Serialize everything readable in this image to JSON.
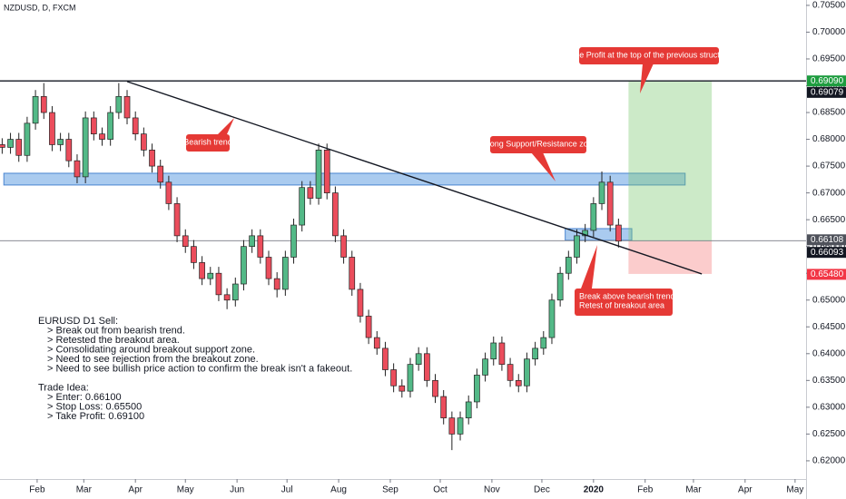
{
  "chart_data": {
    "type": "candlestick",
    "title": "NZDUSD, D, FXCM",
    "x": [
      10,
      15,
      20,
      25,
      30,
      35,
      40,
      45,
      50,
      55,
      60,
      65,
      70,
      75,
      80,
      85,
      90,
      95,
      100,
      105,
      110,
      115,
      120,
      125,
      130,
      135,
      140,
      145,
      150,
      155,
      160,
      165,
      170,
      175,
      180,
      185,
      190,
      195,
      200,
      205,
      210,
      215,
      220,
      225,
      230,
      235,
      240,
      245,
      250,
      255,
      260,
      265,
      270,
      275,
      280,
      285,
      290,
      295,
      300,
      305,
      310,
      315,
      320,
      325,
      330,
      335,
      340,
      345,
      350,
      355,
      360,
      365,
      370,
      375,
      380
    ],
    "open": [
      0.679,
      0.6785,
      0.68,
      0.677,
      0.683,
      0.688,
      0.685,
      0.679,
      0.68,
      0.676,
      0.673,
      0.684,
      0.681,
      0.68,
      0.685,
      0.688,
      0.684,
      0.681,
      0.678,
      0.675,
      0.672,
      0.668,
      0.662,
      0.66,
      0.657,
      0.654,
      0.655,
      0.651,
      0.65,
      0.653,
      0.66,
      0.662,
      0.658,
      0.654,
      0.652,
      0.658,
      0.664,
      0.671,
      0.669,
      0.678,
      0.67,
      0.662,
      0.658,
      0.652,
      0.647,
      0.643,
      0.641,
      0.637,
      0.634,
      0.633,
      0.638,
      0.64,
      0.635,
      0.632,
      0.628,
      0.625,
      0.628,
      0.631,
      0.636,
      0.639,
      0.642,
      0.638,
      0.635,
      0.634,
      0.639,
      0.641,
      0.643,
      0.65,
      0.655,
      0.658,
      0.662,
      0.663,
      0.668,
      0.672,
      0.664
    ],
    "high": [
      0.6802,
      0.6812,
      0.6812,
      0.6842,
      0.6892,
      0.6905,
      0.6862,
      0.6812,
      0.6812,
      0.6772,
      0.6852,
      0.6852,
      0.6822,
      0.6862,
      0.6905,
      0.6892,
      0.6852,
      0.6822,
      0.6792,
      0.6762,
      0.6732,
      0.6692,
      0.6632,
      0.6612,
      0.6582,
      0.6562,
      0.6562,
      0.6522,
      0.6542,
      0.6612,
      0.6632,
      0.6632,
      0.6592,
      0.6552,
      0.6592,
      0.6652,
      0.6722,
      0.6722,
      0.6792,
      0.6792,
      0.6712,
      0.6632,
      0.6592,
      0.6532,
      0.6482,
      0.6442,
      0.6422,
      0.6382,
      0.6352,
      0.6392,
      0.6412,
      0.6412,
      0.6362,
      0.6332,
      0.6292,
      0.6292,
      0.6322,
      0.6372,
      0.6402,
      0.6432,
      0.6432,
      0.6392,
      0.6362,
      0.6402,
      0.6422,
      0.6442,
      0.6512,
      0.6562,
      0.6592,
      0.6632,
      0.6642,
      0.6692,
      0.674,
      0.6732,
      0.6652
    ],
    "low": [
      0.6773,
      0.6773,
      0.6758,
      0.6758,
      0.6818,
      0.6838,
      0.6778,
      0.6778,
      0.6748,
      0.6718,
      0.6718,
      0.6798,
      0.6788,
      0.6788,
      0.6838,
      0.6828,
      0.6798,
      0.6768,
      0.6738,
      0.6708,
      0.6668,
      0.6608,
      0.6588,
      0.6558,
      0.6528,
      0.6528,
      0.6498,
      0.6483,
      0.6488,
      0.6518,
      0.6588,
      0.6568,
      0.6528,
      0.6505,
      0.6508,
      0.6568,
      0.6628,
      0.6678,
      0.6678,
      0.6688,
      0.6608,
      0.6568,
      0.6508,
      0.6458,
      0.6418,
      0.6398,
      0.6358,
      0.6328,
      0.6318,
      0.6318,
      0.6368,
      0.6338,
      0.6308,
      0.6268,
      0.622,
      0.6238,
      0.6268,
      0.6298,
      0.6348,
      0.6378,
      0.6368,
      0.6338,
      0.6328,
      0.6328,
      0.6378,
      0.6398,
      0.6418,
      0.6488,
      0.6538,
      0.6568,
      0.6608,
      0.6618,
      0.6668,
      0.6628,
      0.6598
    ],
    "close": [
      0.6785,
      0.68,
      0.677,
      0.683,
      0.688,
      0.685,
      0.679,
      0.68,
      0.676,
      0.673,
      0.684,
      0.681,
      0.68,
      0.685,
      0.688,
      0.684,
      0.681,
      0.678,
      0.675,
      0.672,
      0.668,
      0.662,
      0.66,
      0.657,
      0.654,
      0.655,
      0.651,
      0.65,
      0.653,
      0.66,
      0.662,
      0.658,
      0.654,
      0.652,
      0.658,
      0.664,
      0.671,
      0.669,
      0.678,
      0.67,
      0.662,
      0.658,
      0.652,
      0.647,
      0.643,
      0.641,
      0.637,
      0.634,
      0.633,
      0.638,
      0.64,
      0.635,
      0.632,
      0.628,
      0.625,
      0.628,
      0.631,
      0.636,
      0.639,
      0.642,
      0.638,
      0.635,
      0.634,
      0.639,
      0.641,
      0.643,
      0.65,
      0.655,
      0.658,
      0.662,
      0.663,
      0.668,
      0.672,
      0.664,
      0.661
    ],
    "up_color": "#53b987",
    "down_color": "#eb4d5c",
    "xlim": [
      8.7,
      492.6
    ],
    "xticks": [
      {
        "value": 31,
        "label": "Feb"
      },
      {
        "value": 59,
        "label": "Mar"
      },
      {
        "value": 90,
        "label": "Apr"
      },
      {
        "value": 120,
        "label": "May"
      },
      {
        "value": 151,
        "label": "Jun"
      },
      {
        "value": 181,
        "label": "Jul"
      },
      {
        "value": 212,
        "label": "Aug"
      },
      {
        "value": 243,
        "label": "Sep"
      },
      {
        "value": 273,
        "label": "Oct"
      },
      {
        "value": 304,
        "label": "Nov"
      },
      {
        "value": 334,
        "label": "Dec"
      },
      {
        "value": 365,
        "label": "2020"
      },
      {
        "value": 396,
        "label": "Feb"
      },
      {
        "value": 425,
        "label": "Mar"
      },
      {
        "value": 456,
        "label": "Apr"
      },
      {
        "value": 486,
        "label": "May"
      }
    ],
    "ylim": [
      0.6166,
      0.706
    ],
    "yticks": [
      {
        "value": 0.62,
        "label": "0.62000"
      },
      {
        "value": 0.625,
        "label": "0.62500"
      },
      {
        "value": 0.63,
        "label": "0.63000"
      },
      {
        "value": 0.635,
        "label": "0.63500"
      },
      {
        "value": 0.64,
        "label": "0.64000"
      },
      {
        "value": 0.645,
        "label": "0.64500"
      },
      {
        "value": 0.65,
        "label": "0.65000"
      },
      {
        "value": 0.655,
        "label": "0.65500"
      },
      {
        "value": 0.66,
        "label": "0.66000"
      },
      {
        "value": 0.665,
        "label": "0.66500"
      },
      {
        "value": 0.67,
        "label": "0.67000"
      },
      {
        "value": 0.675,
        "label": "0.67500"
      },
      {
        "value": 0.68,
        "label": "0.68000"
      },
      {
        "value": 0.685,
        "label": "0.68500"
      },
      {
        "value": 0.69,
        "label": "0.69000"
      },
      {
        "value": 0.695,
        "label": "0.69500"
      },
      {
        "value": 0.7,
        "label": "0.70000"
      },
      {
        "value": 0.705,
        "label": "0.70500"
      }
    ],
    "grid": false,
    "hlines": [
      {
        "value": 0.6909,
        "color": "#131722"
      },
      {
        "value": 0.66108,
        "color": "#787b86"
      }
    ],
    "price_labels": [
      {
        "value": 0.6909,
        "label": "0.69090",
        "color": "#1e9d3f"
      },
      {
        "value": 0.69079,
        "label": "0.69079",
        "color": "#131722"
      },
      {
        "value": 0.66108,
        "label": "0.66108",
        "color": "#4f525b"
      },
      {
        "value": 0.66093,
        "label": "0.66093",
        "color": "#131722"
      },
      {
        "value": 0.6548,
        "label": "0.65480",
        "color": "#f23645"
      }
    ],
    "trendline": {
      "x": [
        85,
        430
      ],
      "y": [
        0.69078,
        0.65488
      ],
      "color": "#131722"
    },
    "zones": [
      {
        "x": [
          11,
          420
        ],
        "y": [
          0.67147,
          0.67367
        ],
        "color": "rgba(66,140,220,0.45)"
      },
      {
        "x": [
          348,
          388
        ],
        "y": [
          0.66115,
          0.66334
        ],
        "color": "rgba(66,140,220,0.45)"
      },
      {
        "x": [
          386,
          436
        ],
        "y": [
          0.66097,
          0.69079
        ],
        "color": "rgba(120,200,110,0.38)"
      },
      {
        "x": [
          386,
          436
        ],
        "y": [
          0.65488,
          0.66097
        ],
        "color": "rgba(245,120,120,0.38)"
      }
    ],
    "annotations": [
      {
        "lines": [
          "Bearish trend"
        ]
      },
      {
        "lines": [
          "Strong Support/Resistance zone"
        ]
      },
      {
        "lines": [
          "Take Profit at the top of the previous structure"
        ]
      },
      {
        "lines": [
          "Break above bearish trendline",
          "Retest of breakout area"
        ]
      }
    ],
    "notes": [
      {
        "heading": "EURUSD D1 Sell:",
        "items": [
          "> Break out from bearish trend.",
          "> Retested the breakout area.",
          "> Consolidating around breakout support zone.",
          "> Need to see rejection from the breakout zone.",
          "> Need to see bullish price action to confirm the break isn't a fakeout."
        ]
      },
      {
        "heading": "Trade Idea:",
        "items": [
          "> Enter: 0.66100",
          "> Stop Loss: 0.65500",
          "> Take Profit: 0.69100"
        ]
      }
    ]
  }
}
